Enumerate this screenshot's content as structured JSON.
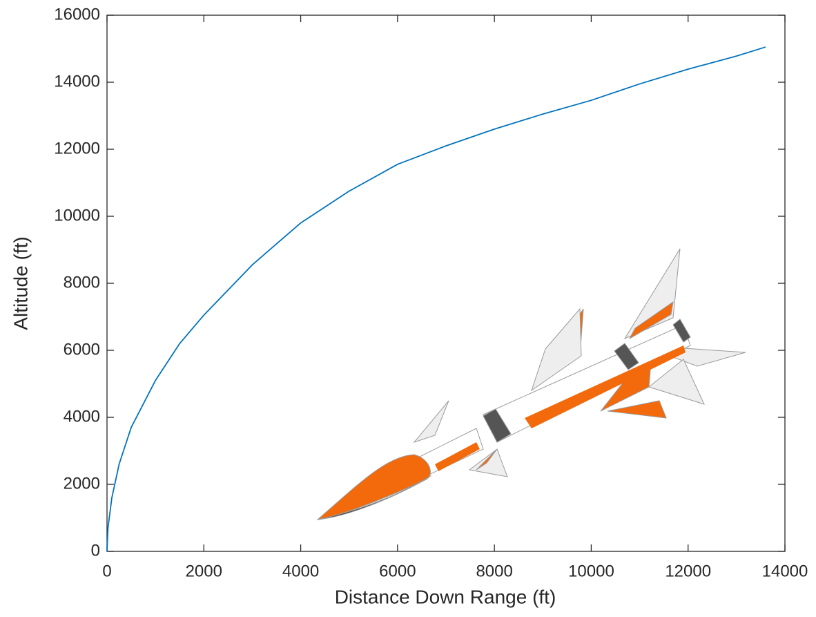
{
  "chart_data": {
    "type": "line",
    "xlabel": "Distance Down Range (ft)",
    "ylabel": "Altitude (ft)",
    "x": [
      0,
      20,
      100,
      250,
      500,
      1000,
      1500,
      2000,
      3000,
      4000,
      5000,
      6000,
      7000,
      8000,
      9000,
      10000,
      11000,
      12000,
      13000,
      13600
    ],
    "series": [
      {
        "color": "#0072bd",
        "values": [
          0,
          700,
          1600,
          2600,
          3700,
          5100,
          6200,
          7050,
          8550,
          9800,
          10750,
          11550,
          12100,
          12600,
          13050,
          13460,
          13950,
          14390,
          14780,
          15050
        ]
      }
    ],
    "xlim": [
      0,
      14000
    ],
    "xticks": [
      0,
      2000,
      4000,
      6000,
      8000,
      10000,
      12000,
      14000
    ],
    "ylim": [
      0,
      16000
    ],
    "yticks": [
      0,
      2000,
      4000,
      6000,
      8000,
      10000,
      12000,
      14000,
      16000
    ],
    "grid": false
  }
}
